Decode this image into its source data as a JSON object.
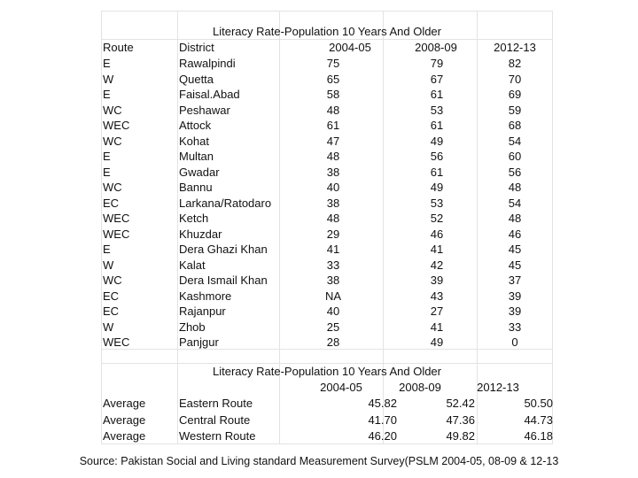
{
  "table1": {
    "title": "Literacy Rate-Population 10 Years And Older",
    "headers": {
      "route": "Route",
      "district": "District",
      "y1": "2004-05",
      "y2": "2008-09",
      "y3": "2012-13"
    },
    "rows": [
      {
        "route": "E",
        "district": "Rawalpindi",
        "y1": "75",
        "y2": "79",
        "y3": "82"
      },
      {
        "route": "W",
        "district": "Quetta",
        "y1": "65",
        "y2": "67",
        "y3": "70"
      },
      {
        "route": "E",
        "district": "Faisal.Abad",
        "y1": "58",
        "y2": "61",
        "y3": "69"
      },
      {
        "route": "WC",
        "district": "Peshawar",
        "y1": "48",
        "y2": "53",
        "y3": "59"
      },
      {
        "route": "WEC",
        "district": "Attock",
        "y1": "61",
        "y2": "61",
        "y3": "68"
      },
      {
        "route": "WC",
        "district": "Kohat",
        "y1": "47",
        "y2": "49",
        "y3": "54"
      },
      {
        "route": "E",
        "district": "Multan",
        "y1": "48",
        "y2": "56",
        "y3": "60"
      },
      {
        "route": "E",
        "district": "Gwadar",
        "y1": "38",
        "y2": "61",
        "y3": "56"
      },
      {
        "route": "WC",
        "district": "Bannu",
        "y1": "40",
        "y2": "49",
        "y3": "48"
      },
      {
        "route": "EC",
        "district": "Larkana/Ratodaro",
        "y1": "38",
        "y2": "53",
        "y3": "54"
      },
      {
        "route": "WEC",
        "district": "Ketch",
        "y1": "48",
        "y2": "52",
        "y3": "48"
      },
      {
        "route": "WEC",
        "district": "Khuzdar",
        "y1": "29",
        "y2": "46",
        "y3": "46"
      },
      {
        "route": "E",
        "district": "Dera Ghazi Khan",
        "y1": "41",
        "y2": "41",
        "y3": "45"
      },
      {
        "route": "W",
        "district": "Kalat",
        "y1": "33",
        "y2": "42",
        "y3": "45"
      },
      {
        "route": "WC",
        "district": "Dera Ismail Khan",
        "y1": "38",
        "y2": "39",
        "y3": "37"
      },
      {
        "route": "EC",
        "district": "Kashmore",
        "y1": "NA",
        "y2": "43",
        "y3": "39"
      },
      {
        "route": "EC",
        "district": "Rajanpur",
        "y1": "40",
        "y2": "27",
        "y3": "39"
      },
      {
        "route": "W",
        "district": "Zhob",
        "y1": "25",
        "y2": "41",
        "y3": "33"
      },
      {
        "route": "WEC",
        "district": "Panjgur",
        "y1": "28",
        "y2": "49",
        "y3": "0"
      }
    ]
  },
  "table2": {
    "title": "Literacy Rate-Population 10 Years And Older",
    "headers": {
      "y1": "2004-05",
      "y2": "2008-09",
      "y3": "2012-13"
    },
    "rows": [
      {
        "label": "Average",
        "route": "Eastern Route",
        "y1": "45.82",
        "y2": "52.42",
        "y3": "50.50"
      },
      {
        "label": "Average",
        "route": "Central Route",
        "y1": "41.70",
        "y2": "47.36",
        "y3": "44.73"
      },
      {
        "label": "Average",
        "route": "Western Route",
        "y1": "46.20",
        "y2": "49.82",
        "y3": "46.18"
      }
    ]
  },
  "source": "Source: Pakistan Social and Living standard  Measurement Survey(PSLM 2004-05, 08-09 & 12-13"
}
